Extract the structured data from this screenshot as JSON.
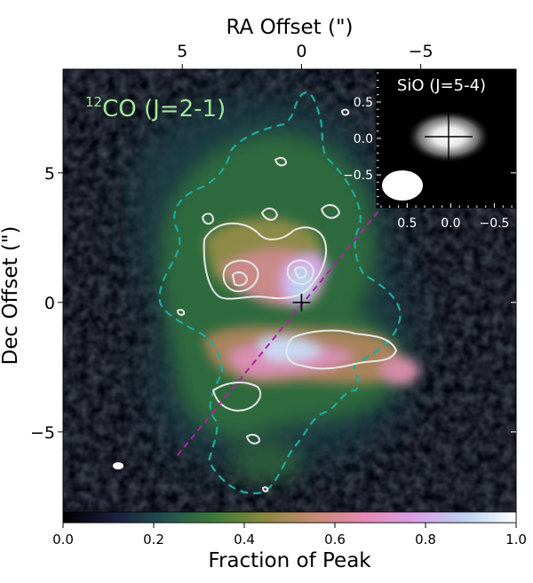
{
  "chart_data": {
    "type": "heatmap",
    "xlabel": "RA Offset (\")",
    "ylabel": "Dec Offset (\")",
    "xlim": [
      10,
      -9
    ],
    "ylim": [
      -8.5,
      9
    ],
    "x_ticks": [
      5,
      0,
      -5
    ],
    "x_tick_labels": [
      "5",
      "0",
      "−5"
    ],
    "y_ticks": [
      5,
      0,
      -5
    ],
    "y_tick_labels": [
      "5",
      "0",
      "−5"
    ],
    "annotation_main": "CO (J=2-1)",
    "annotation_sup": "12",
    "annotation_color": "#9fe89a",
    "colorbar": {
      "label": "Fraction of Peak",
      "range": [
        0,
        1
      ],
      "ticks": [
        0.0,
        0.2,
        0.4,
        0.6,
        0.8,
        1.0
      ],
      "tick_labels": [
        "0.0",
        "0.2",
        "0.4",
        "0.6",
        "0.8",
        "1.0"
      ],
      "colormap": [
        "#000000",
        "#1b1c3c",
        "#214f50",
        "#3c7a3a",
        "#8a8840",
        "#c68a76",
        "#e58bb4",
        "#d7a0e6",
        "#bcd2f0",
        "#ffffff"
      ]
    },
    "source_center": [
      0,
      0
    ],
    "outflow_axis": {
      "from": [
        5.2,
        -5.9
      ],
      "to": [
        -3.3,
        3.6
      ],
      "color": "#b01faa"
    },
    "outer_contour_color": "#1eaaa0",
    "inset": {
      "title": "SiO (J=5-4)",
      "xlim": [
        0.85,
        -0.75
      ],
      "ylim": [
        -0.95,
        0.95
      ],
      "x_ticks": [
        0.5,
        0.0,
        -0.5
      ],
      "x_tick_labels": [
        "0.5",
        "0.0",
        "−0.5"
      ],
      "y_ticks": [
        0.5,
        0.0,
        -0.5
      ],
      "y_tick_labels": [
        "0.5",
        "0.0",
        "−0.5"
      ]
    }
  }
}
